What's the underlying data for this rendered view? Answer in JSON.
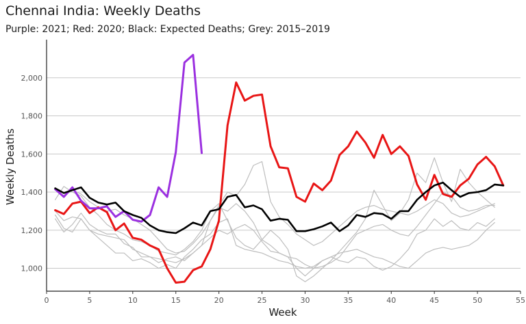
{
  "chart_data": {
    "type": "line",
    "title": "Chennai India: Weekly Deaths",
    "subtitle": "Purple: 2021; Red: 2020; Black: Expected Deaths; Grey: 2015–2019",
    "xlabel": "Week",
    "ylabel": "Weekly Deaths",
    "xlim": [
      0,
      55
    ],
    "ylim": [
      880,
      2200
    ],
    "x_ticks": [
      0,
      5,
      10,
      15,
      20,
      25,
      30,
      35,
      40,
      45,
      50,
      55
    ],
    "y_ticks": [
      1000,
      1200,
      1400,
      1600,
      1800,
      2000
    ],
    "y_tick_labels": [
      "1,000",
      "1,200",
      "1,400",
      "1,600",
      "1,800",
      "2,000"
    ],
    "grid": "horizontal",
    "colors": {
      "grey": "#bdbdbd",
      "red": "#e81515",
      "purple": "#9b30e0",
      "black": "#000000"
    },
    "series": [
      {
        "group": "grey",
        "color": "#bdbdbd",
        "x": [
          1,
          2,
          3,
          4,
          5,
          6,
          7,
          8,
          9,
          10,
          11,
          12,
          13,
          14,
          15,
          16,
          17,
          18,
          19,
          20,
          21,
          22,
          23,
          24,
          25,
          26,
          27,
          28,
          29,
          30,
          31,
          32,
          33,
          34,
          35,
          36,
          37,
          38,
          39,
          40,
          41,
          42,
          43,
          44,
          45,
          46,
          47,
          48,
          49,
          50,
          51,
          52
        ],
        "values": [
          1420,
          1380,
          1410,
          1390,
          1350,
          1320,
          1300,
          1310,
          1280,
          1260,
          1230,
          1200,
          1150,
          1100,
          1080,
          1090,
          1130,
          1180,
          1250,
          1330,
          1400,
          1380,
          1440,
          1540,
          1560,
          1350,
          1270,
          1230,
          1180,
          1150,
          1120,
          1140,
          1180,
          1220,
          1260,
          1300,
          1320,
          1330,
          1310,
          1300,
          1290,
          1280,
          1300,
          1330,
          1360,
          1340,
          1290,
          1270,
          1280,
          1300,
          1320,
          1340
        ]
      },
      {
        "group": "grey",
        "color": "#bdbdbd",
        "x": [
          1,
          2,
          3,
          4,
          5,
          6,
          7,
          8,
          9,
          10,
          11,
          12,
          13,
          14,
          15,
          16,
          17,
          18,
          19,
          20,
          21,
          22,
          23,
          24,
          25,
          26,
          27,
          28,
          29,
          30,
          31,
          32,
          33,
          34,
          35,
          36,
          37,
          38,
          39,
          40,
          41,
          42,
          43,
          44,
          45,
          46,
          47,
          48,
          49,
          50,
          51,
          52
        ],
        "values": [
          1300,
          1250,
          1270,
          1260,
          1200,
          1180,
          1170,
          1160,
          1150,
          1100,
          1080,
          1060,
          1050,
          1040,
          1030,
          1050,
          1080,
          1120,
          1250,
          1320,
          1300,
          1340,
          1300,
          1240,
          1150,
          1120,
          1080,
          1060,
          1050,
          1020,
          1000,
          1010,
          1030,
          1060,
          1120,
          1180,
          1200,
          1220,
          1230,
          1200,
          1180,
          1170,
          1220,
          1280,
          1340,
          1400,
          1380,
          1320,
          1300,
          1310,
          1330,
          1330
        ]
      },
      {
        "group": "grey",
        "color": "#bdbdbd",
        "x": [
          1,
          2,
          3,
          4,
          5,
          6,
          7,
          8,
          9,
          10,
          11,
          12,
          13,
          14,
          15,
          16,
          17,
          18,
          19,
          20,
          21,
          22,
          23,
          24,
          25,
          26,
          27,
          28,
          29,
          30,
          31,
          32,
          33,
          34,
          35,
          36,
          37,
          38,
          39,
          40,
          41,
          42,
          43,
          44,
          45,
          46,
          47,
          48,
          49,
          50,
          51,
          52
        ],
        "values": [
          1280,
          1210,
          1190,
          1260,
          1200,
          1160,
          1120,
          1080,
          1080,
          1040,
          1050,
          1030,
          1000,
          1020,
          1000,
          1060,
          1100,
          1150,
          1180,
          1240,
          1260,
          1120,
          1100,
          1090,
          1080,
          1060,
          1040,
          1030,
          1010,
          1000,
          1010,
          1040,
          1060,
          1080,
          1090,
          1100,
          1080,
          1060,
          1050,
          1030,
          1010,
          1000,
          1040,
          1080,
          1100,
          1110,
          1100,
          1110,
          1120,
          1150,
          1200,
          1240
        ]
      },
      {
        "group": "grey",
        "color": "#bdbdbd",
        "x": [
          1,
          2,
          3,
          4,
          5,
          6,
          7,
          8,
          9,
          10,
          11,
          12,
          13,
          14,
          15,
          16,
          17,
          18,
          19,
          20,
          21,
          22,
          23,
          24,
          25,
          26,
          27,
          28,
          29,
          30,
          31,
          32,
          33,
          34,
          35,
          36,
          37,
          38,
          39,
          40,
          41,
          42,
          43,
          44,
          45,
          46,
          47,
          48,
          49,
          50,
          51,
          52
        ],
        "values": [
          1360,
          1430,
          1400,
          1380,
          1320,
          1280,
          1230,
          1200,
          1180,
          1150,
          1140,
          1120,
          1090,
          1080,
          1070,
          1100,
          1140,
          1200,
          1300,
          1340,
          1250,
          1160,
          1120,
          1100,
          1150,
          1200,
          1160,
          1100,
          960,
          930,
          960,
          1000,
          1040,
          1090,
          1140,
          1190,
          1260,
          1410,
          1330,
          1250,
          1290,
          1360,
          1500,
          1450,
          1580,
          1450,
          1350,
          1520,
          1450,
          1400,
          1360,
          1320
        ]
      },
      {
        "group": "grey",
        "color": "#bdbdbd",
        "x": [
          1,
          2,
          3,
          4,
          5,
          6,
          7,
          8,
          9,
          10,
          11,
          12,
          13,
          14,
          15,
          16,
          17,
          18,
          19,
          20,
          21,
          22,
          23,
          24,
          25,
          26,
          27,
          28,
          29,
          30,
          31,
          32,
          33,
          34,
          35,
          36,
          37,
          38,
          39,
          40,
          41,
          42,
          43,
          44,
          45,
          46,
          47,
          48,
          49,
          50,
          51,
          52
        ],
        "values": [
          1260,
          1190,
          1230,
          1290,
          1230,
          1200,
          1180,
          1180,
          1130,
          1110,
          1060,
          1060,
          1030,
          1050,
          1060,
          1040,
          1080,
          1120,
          1160,
          1200,
          1180,
          1210,
          1230,
          1200,
          1140,
          1090,
          1080,
          1060,
          1000,
          960,
          1000,
          1040,
          1060,
          1040,
          1030,
          1060,
          1050,
          1010,
          990,
          1010,
          1050,
          1100,
          1180,
          1200,
          1260,
          1220,
          1250,
          1210,
          1200,
          1240,
          1220,
          1260
        ]
      },
      {
        "group": "red",
        "color": "#e81515",
        "x": [
          1,
          2,
          3,
          4,
          5,
          6,
          7,
          8,
          9,
          10,
          11,
          12,
          13,
          14,
          15,
          16,
          17,
          18,
          19,
          20,
          21,
          22,
          23,
          24,
          25,
          26,
          27,
          28,
          29,
          30,
          31,
          32,
          33,
          34,
          35,
          36,
          37,
          38,
          39,
          40,
          41,
          42,
          43,
          44,
          45,
          46,
          47,
          48,
          49,
          50,
          51,
          52,
          53
        ],
        "values": [
          1305,
          1285,
          1340,
          1350,
          1290,
          1320,
          1295,
          1200,
          1235,
          1160,
          1150,
          1120,
          1100,
          1000,
          925,
          930,
          990,
          1010,
          1100,
          1250,
          1750,
          1975,
          1880,
          1905,
          1912,
          1640,
          1530,
          1525,
          1375,
          1350,
          1445,
          1410,
          1460,
          1595,
          1640,
          1718,
          1660,
          1580,
          1700,
          1600,
          1640,
          1590,
          1440,
          1360,
          1490,
          1390,
          1375,
          1435,
          1470,
          1545,
          1585,
          1535,
          1435
        ]
      },
      {
        "group": "purple",
        "color": "#9b30e0",
        "x": [
          1,
          2,
          3,
          4,
          5,
          6,
          7,
          8,
          9,
          10,
          11,
          12,
          13,
          14,
          15,
          16,
          17,
          18
        ],
        "values": [
          1415,
          1375,
          1425,
          1355,
          1315,
          1315,
          1325,
          1270,
          1300,
          1255,
          1245,
          1280,
          1425,
          1375,
          1610,
          2080,
          2120,
          1605
        ]
      },
      {
        "group": "black",
        "color": "#000000",
        "x": [
          1,
          2,
          3,
          4,
          5,
          6,
          7,
          8,
          9,
          10,
          11,
          12,
          13,
          14,
          15,
          16,
          17,
          18,
          19,
          20,
          21,
          22,
          23,
          24,
          25,
          26,
          27,
          28,
          29,
          30,
          31,
          32,
          33,
          34,
          35,
          36,
          37,
          38,
          39,
          40,
          41,
          42,
          43,
          44,
          45,
          46,
          47,
          48,
          49,
          50,
          51,
          52,
          53
        ],
        "values": [
          1420,
          1395,
          1410,
          1425,
          1370,
          1345,
          1335,
          1345,
          1300,
          1280,
          1265,
          1225,
          1200,
          1190,
          1185,
          1210,
          1240,
          1225,
          1300,
          1310,
          1375,
          1385,
          1320,
          1330,
          1310,
          1250,
          1260,
          1255,
          1195,
          1195,
          1205,
          1220,
          1240,
          1195,
          1225,
          1280,
          1270,
          1290,
          1285,
          1260,
          1300,
          1300,
          1360,
          1400,
          1435,
          1450,
          1410,
          1375,
          1395,
          1400,
          1410,
          1440,
          1435
        ]
      }
    ]
  }
}
